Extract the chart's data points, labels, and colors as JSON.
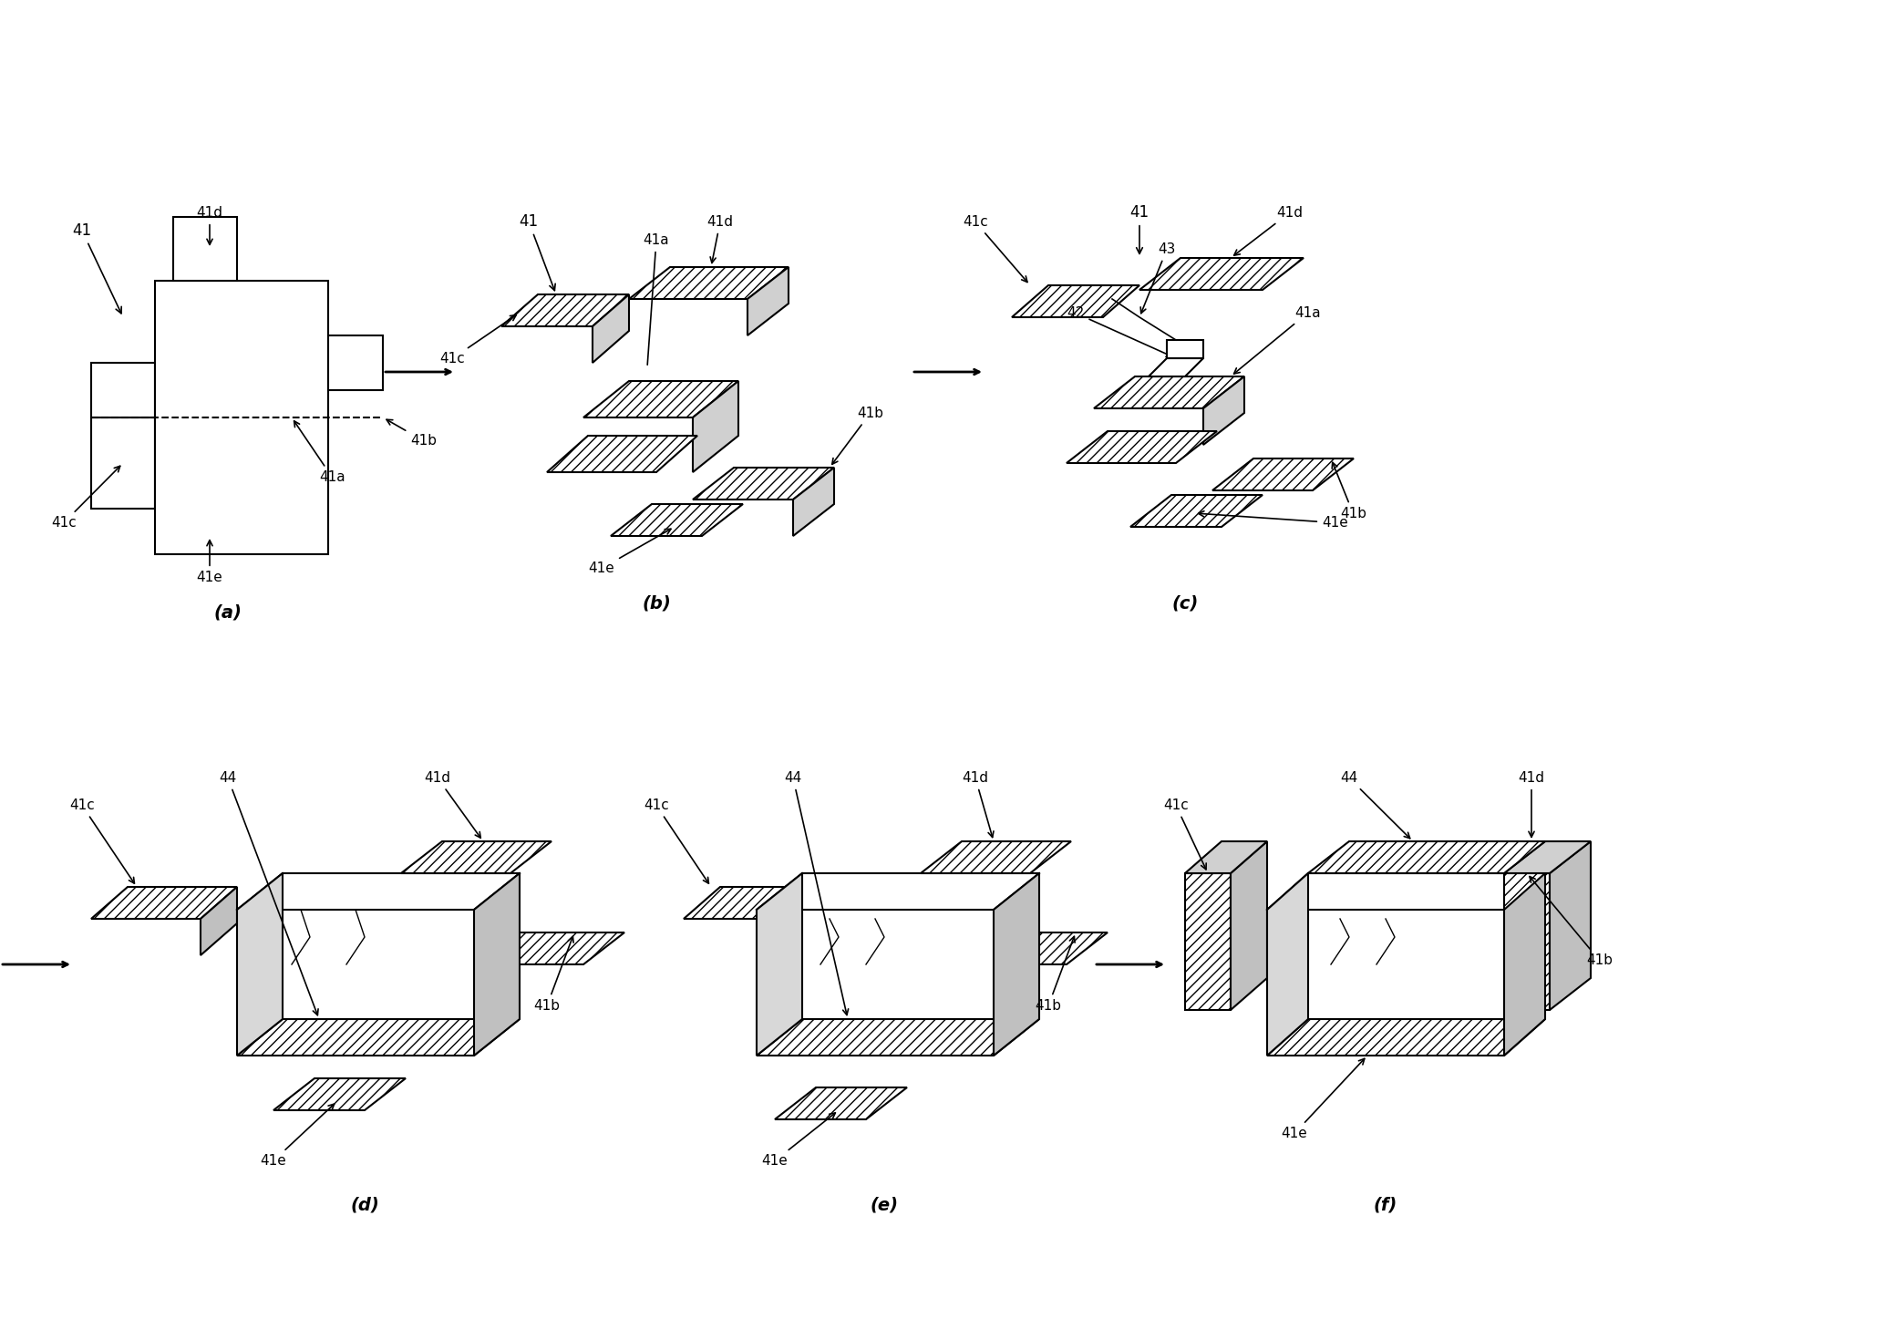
{
  "bg_color": "#ffffff",
  "line_color": "#000000",
  "hatch_pattern": "///",
  "fig_labels": [
    "(a)",
    "(b)",
    "(c)",
    "(d)",
    "(e)",
    "(f)"
  ],
  "part_labels": {
    "41": "41",
    "41a": "41a",
    "41b": "41b",
    "41c": "41c",
    "41d": "41d",
    "41e": "41e",
    "42": "42",
    "43": "43",
    "44": "44"
  }
}
